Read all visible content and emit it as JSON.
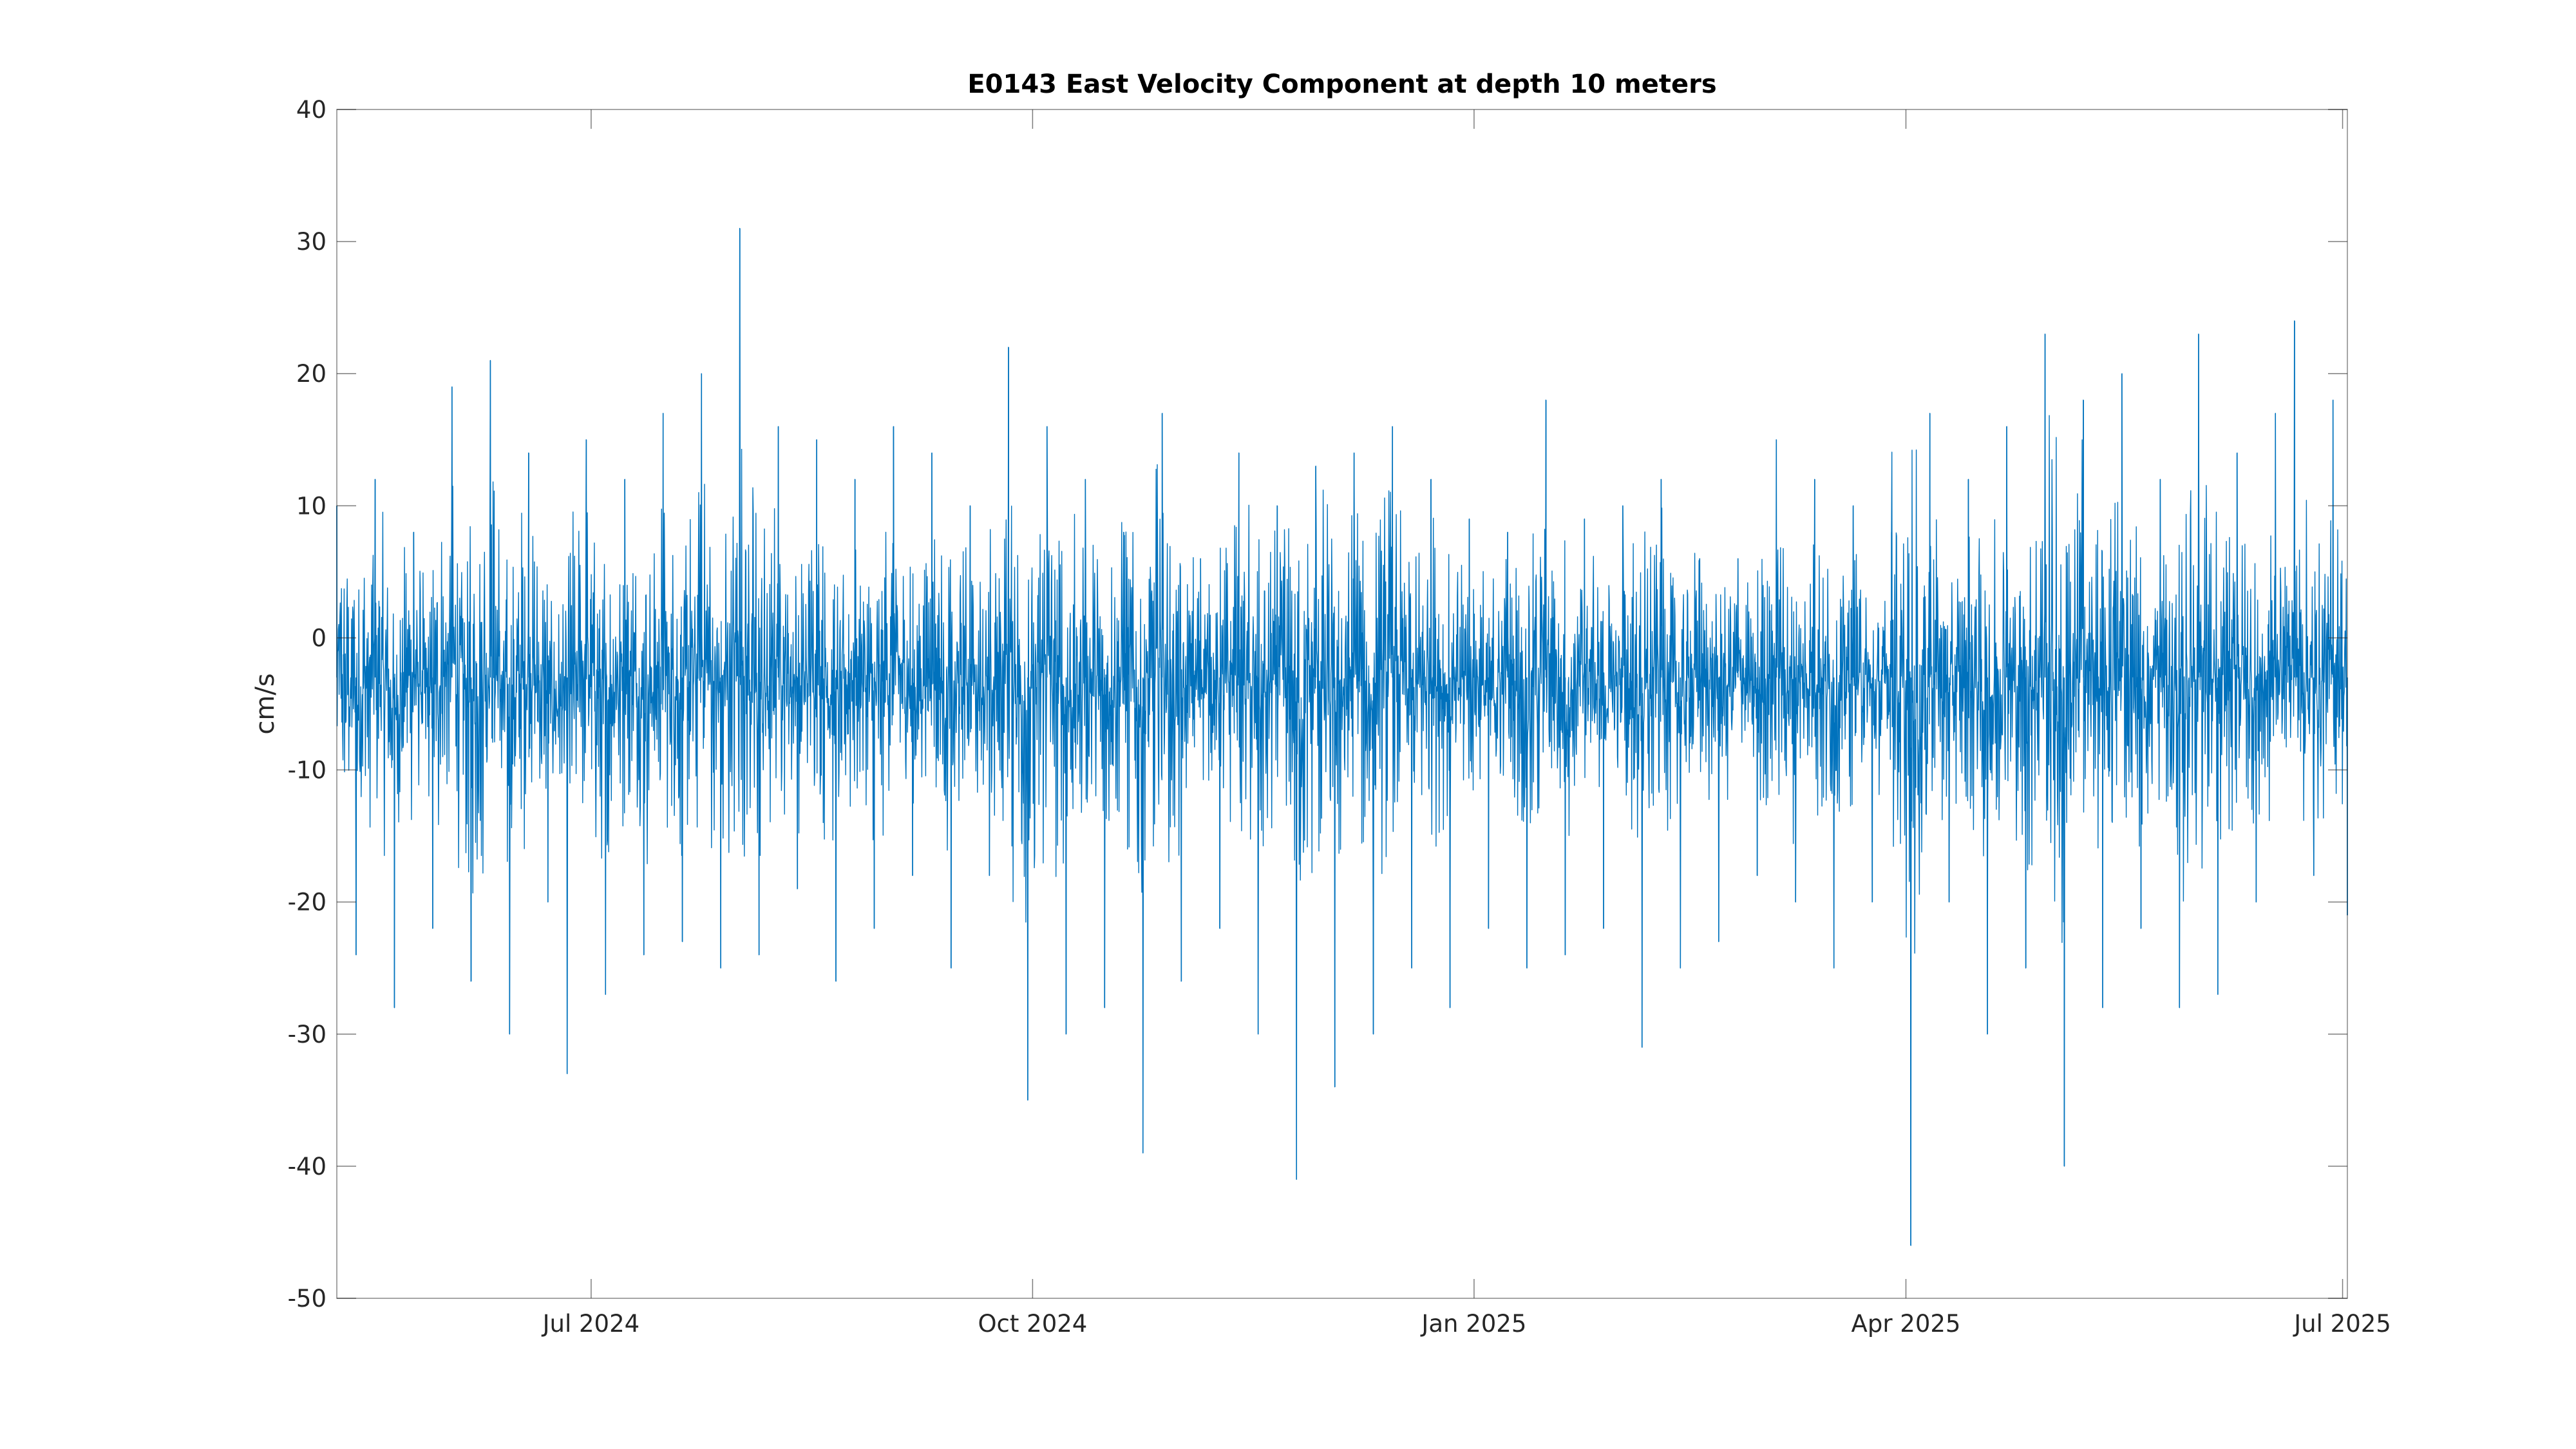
{
  "chart_data": {
    "type": "line",
    "title": "E0143 East Velocity Component at depth 10 meters",
    "xlabel": "",
    "ylabel": "cm/s",
    "xlim": [
      "2024-05-09",
      "2025-07-02"
    ],
    "ylim": [
      -50,
      40
    ],
    "yticks": [
      40,
      30,
      20,
      10,
      0,
      -10,
      -20,
      -30,
      -40,
      -50
    ],
    "ytick_labels": [
      "40",
      "30",
      "20",
      "10",
      "0",
      "-10",
      "-20",
      "-30",
      "-40",
      "-50"
    ],
    "xticks": [
      "2024-07-01",
      "2024-10-01",
      "2025-01-01",
      "2025-04-01",
      "2025-07-01"
    ],
    "xtick_labels": [
      "Jul 2024",
      "Oct 2024",
      "Jan 2025",
      "Apr 2025",
      "Jul 2025"
    ],
    "grid": false,
    "line_color": "#0072BD",
    "series": [
      {
        "x": [
          "2024-05-09",
          "2024-05-13",
          "2024-05-17",
          "2024-05-21",
          "2024-05-25",
          "2024-05-29",
          "2024-06-02",
          "2024-06-06",
          "2024-06-10",
          "2024-06-14",
          "2024-06-18",
          "2024-06-22",
          "2024-06-26",
          "2024-06-30",
          "2024-07-04",
          "2024-07-08",
          "2024-07-12",
          "2024-07-16",
          "2024-07-20",
          "2024-07-24",
          "2024-07-28",
          "2024-08-01",
          "2024-08-05",
          "2024-08-09",
          "2024-08-13",
          "2024-08-17",
          "2024-08-21",
          "2024-08-25",
          "2024-08-29",
          "2024-09-02",
          "2024-09-06",
          "2024-09-10",
          "2024-09-14",
          "2024-09-18",
          "2024-09-22",
          "2024-09-26",
          "2024-09-30",
          "2024-10-04",
          "2024-10-08",
          "2024-10-12",
          "2024-10-16",
          "2024-10-20",
          "2024-10-24",
          "2024-10-28",
          "2024-11-01",
          "2024-11-05",
          "2024-11-09",
          "2024-11-13",
          "2024-11-17",
          "2024-11-21",
          "2024-11-25",
          "2024-11-29",
          "2024-12-03",
          "2024-12-07",
          "2024-12-11",
          "2024-12-15",
          "2024-12-19",
          "2024-12-23",
          "2024-12-27",
          "2024-12-31",
          "2025-01-04",
          "2025-01-08",
          "2025-01-12",
          "2025-01-16",
          "2025-01-20",
          "2025-01-24",
          "2025-01-28",
          "2025-02-01",
          "2025-02-05",
          "2025-02-09",
          "2025-02-13",
          "2025-02-17",
          "2025-02-21",
          "2025-02-25",
          "2025-03-01",
          "2025-03-05",
          "2025-03-09",
          "2025-03-13",
          "2025-03-17",
          "2025-03-21",
          "2025-03-25",
          "2025-03-29",
          "2025-04-02",
          "2025-04-06",
          "2025-04-10",
          "2025-04-14",
          "2025-04-18",
          "2025-04-22",
          "2025-04-26",
          "2025-04-30",
          "2025-05-04",
          "2025-05-08",
          "2025-05-12",
          "2025-05-16",
          "2025-05-20",
          "2025-05-24",
          "2025-05-28",
          "2025-06-01",
          "2025-06-05",
          "2025-06-09",
          "2025-06-13",
          "2025-06-17",
          "2025-06-21",
          "2025-06-25",
          "2025-06-29",
          "2025-07-02"
        ],
        "y": [
          10,
          -24,
          12,
          -28,
          8,
          -22,
          19,
          -26,
          21,
          -30,
          14,
          -20,
          -33,
          15,
          -27,
          12,
          -24,
          17,
          -23,
          20,
          -25,
          31,
          -24,
          16,
          -19,
          15,
          -26,
          12,
          -22,
          16,
          -18,
          14,
          -25,
          10,
          -18,
          22,
          -35,
          16,
          -30,
          12,
          -28,
          8,
          -39,
          17,
          -26,
          6,
          -22,
          14,
          -30,
          10,
          -41,
          13,
          -34,
          14,
          -30,
          16,
          -25,
          12,
          -28,
          9,
          -22,
          8,
          -25,
          18,
          -24,
          9,
          -22,
          10,
          -31,
          12,
          -25,
          6,
          -23,
          6,
          -18,
          15,
          -20,
          12,
          -25,
          10,
          -20,
          8,
          -46,
          17,
          -20,
          12,
          -30,
          16,
          -25,
          23,
          -40,
          18,
          -28,
          20,
          -22,
          12,
          -28,
          23,
          -27,
          14,
          -20,
          17,
          24,
          -18,
          18,
          -21
        ]
      }
    ]
  }
}
